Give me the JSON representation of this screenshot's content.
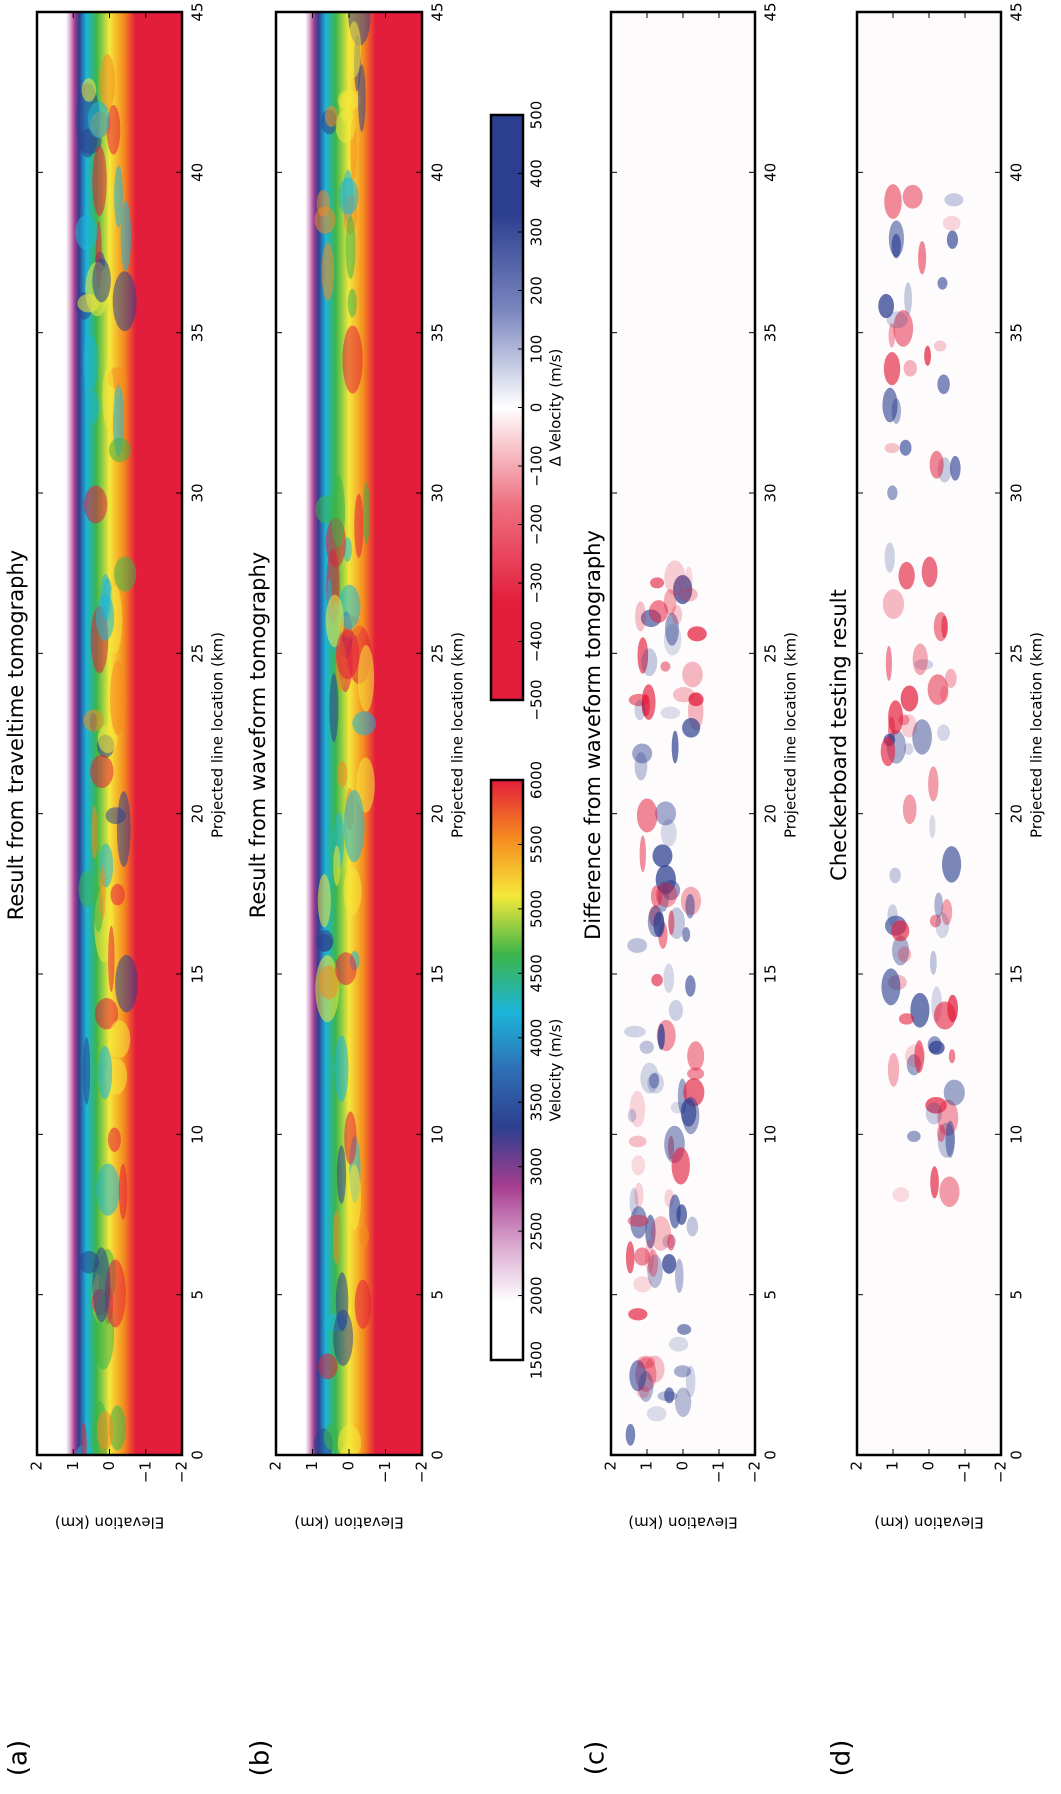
{
  "chart_data": [
    {
      "type": "heatmap",
      "panel_label": "(a)",
      "title": "Result from traveltime tomography",
      "x_label": "Projected line location (km)",
      "y_label": "Elevation (km)",
      "xlim": [
        0,
        45
      ],
      "ylim": [
        -2,
        2
      ],
      "xticks": [
        0,
        5,
        10,
        15,
        20,
        25,
        30,
        35,
        40,
        45
      ],
      "yticks": [
        {
          "value": -2,
          "label": "−2"
        },
        {
          "value": -1,
          "label": "−1"
        },
        0,
        1,
        2
      ]
    },
    {
      "type": "heatmap",
      "panel_label": "(b)",
      "title": "Result from waveform tomography",
      "x_label": "Projected line location (km)",
      "y_label": "Elevation (km)",
      "xlim": [
        0,
        45
      ],
      "ylim": [
        -2,
        2
      ],
      "xticks": [
        0,
        5,
        10,
        15,
        20,
        25,
        30,
        35,
        40,
        45
      ],
      "yticks": [
        {
          "value": -2,
          "label": "−2"
        },
        {
          "value": -1,
          "label": "−1"
        },
        0,
        1,
        2
      ]
    },
    {
      "type": "heatmap",
      "panel_label": "(c)",
      "title": "Difference from waveform tomography",
      "x_label": "Projected line location (km)",
      "y_label": "Elevation (km)",
      "xlim": [
        0,
        45
      ],
      "ylim": [
        -2,
        2
      ],
      "xticks": [
        0,
        5,
        10,
        15,
        20,
        25,
        30,
        35,
        40,
        45
      ],
      "yticks": [
        {
          "value": -2,
          "label": "−2"
        },
        {
          "value": -1,
          "label": "−1"
        },
        0,
        1,
        2
      ]
    },
    {
      "type": "heatmap",
      "panel_label": "(d)",
      "title": "Checkerboard testing result",
      "x_label": "Projected line location (km)",
      "y_label": "Elevation (km)",
      "xlim": [
        0,
        45
      ],
      "ylim": [
        -2,
        2
      ],
      "xticks": [
        0,
        5,
        10,
        15,
        20,
        25,
        30,
        35,
        40,
        45
      ],
      "yticks": [
        {
          "value": -2,
          "label": "−2"
        },
        {
          "value": -1,
          "label": "−1"
        },
        0,
        1,
        2
      ]
    }
  ],
  "colorbars": [
    {
      "label": "Velocity (m/s)",
      "lim": [
        1500,
        6000
      ],
      "ticks": [
        1500,
        2000,
        2500,
        3000,
        3500,
        4000,
        4500,
        5000,
        5500,
        6000
      ],
      "colors": [
        "#ffffff",
        "#ffffff",
        "#d9a6cf",
        "#a63d8f",
        "#2e3f8f",
        "#2f6eb5",
        "#1cb5d9",
        "#3db54a",
        "#f5e83a",
        "#f58b1f",
        "#e31e3c"
      ]
    },
    {
      "label": "Δ Velocity (m/s)",
      "lim": [
        -500,
        500
      ],
      "ticks": [
        {
          "value": -500,
          "label": "−500"
        },
        {
          "value": -400,
          "label": "−400"
        },
        {
          "value": -300,
          "label": "−300"
        },
        {
          "value": -200,
          "label": "−200"
        },
        {
          "value": -100,
          "label": "−100"
        },
        0,
        100,
        200,
        300,
        400,
        500
      ],
      "colors": [
        "#e31e3c",
        "#e31e3c",
        "#ee7080",
        "#ffffff",
        "#7a86bf",
        "#2b3e8f",
        "#2b3e8f"
      ]
    }
  ]
}
